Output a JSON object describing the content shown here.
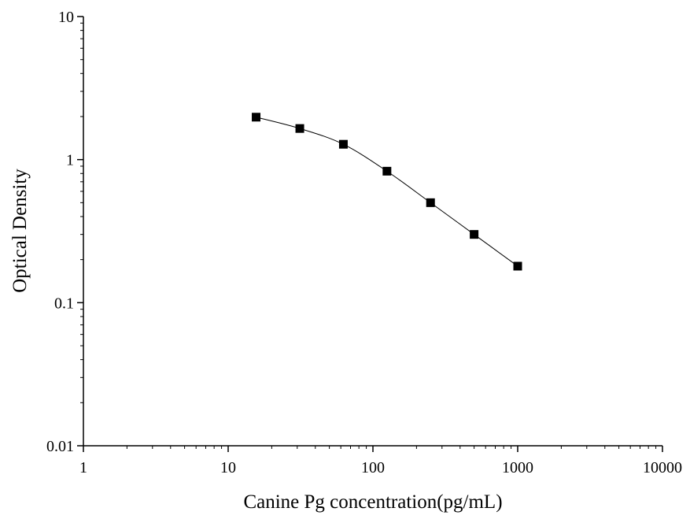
{
  "chart_data": {
    "type": "scatter",
    "title": "",
    "xlabel": "Canine Pg concentration(pg/mL)",
    "ylabel": "Optical Density",
    "x_scale": "log",
    "y_scale": "log",
    "xlim": [
      1,
      10000
    ],
    "ylim": [
      0.01,
      10
    ],
    "x_ticks": [
      {
        "value": 1,
        "label": "1"
      },
      {
        "value": 10,
        "label": "10"
      },
      {
        "value": 100,
        "label": "100"
      },
      {
        "value": 1000,
        "label": "1000"
      },
      {
        "value": 10000,
        "label": "10000"
      }
    ],
    "y_ticks": [
      {
        "value": 0.01,
        "label": "0.01"
      },
      {
        "value": 0.1,
        "label": "0.1"
      },
      {
        "value": 1,
        "label": "1"
      },
      {
        "value": 10,
        "label": "10"
      }
    ],
    "grid": false,
    "legend": "none",
    "marker": "square",
    "connected_by": "smooth curve",
    "series": [
      {
        "x": [
          15.6,
          31.25,
          62.5,
          125,
          250,
          500,
          1000
        ],
        "y": [
          1.98,
          1.65,
          1.28,
          0.83,
          0.5,
          0.3,
          0.18
        ]
      }
    ],
    "colors": {
      "marker": "#000000",
      "line": "#000000",
      "axis": "#000000"
    }
  }
}
